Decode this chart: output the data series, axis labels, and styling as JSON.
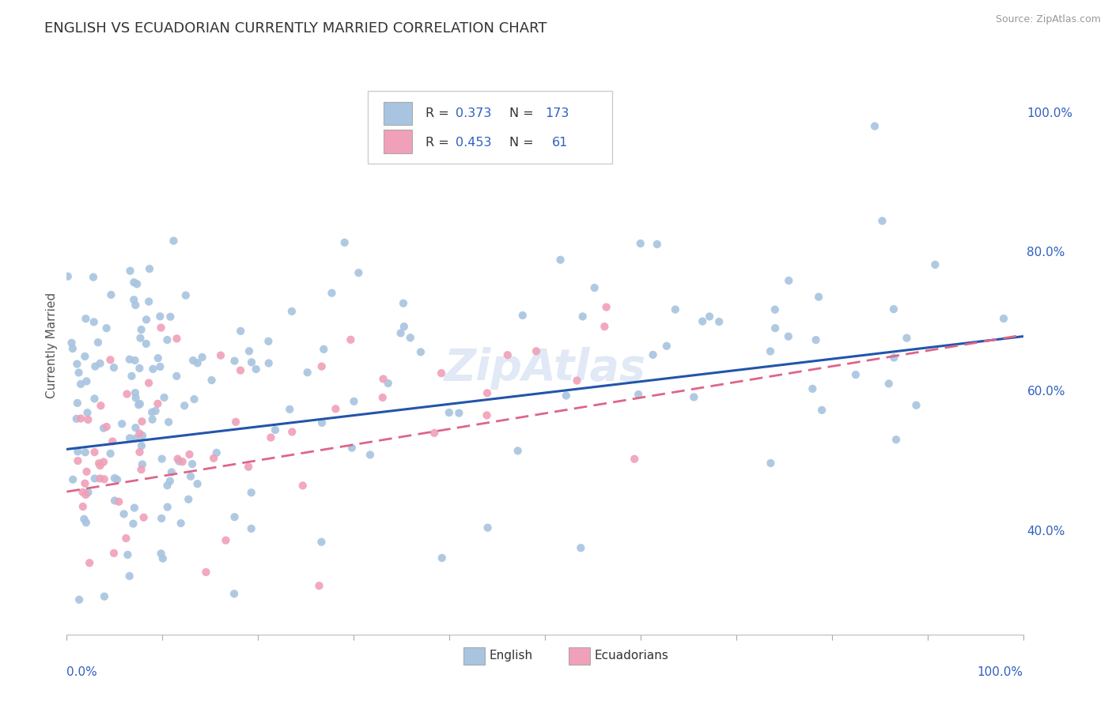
{
  "title": "ENGLISH VS ECUADORIAN CURRENTLY MARRIED CORRELATION CHART",
  "source": "Source: ZipAtlas.com",
  "ylabel": "Currently Married",
  "yaxis_values": [
    0.4,
    0.6,
    0.8,
    1.0
  ],
  "english_color": "#a8c4e0",
  "ecuadorian_color": "#f0a0b8",
  "english_line_color": "#2255aa",
  "ecuadorian_line_color": "#dd6688",
  "english_R": 0.373,
  "english_N": 173,
  "ecuadorian_R": 0.453,
  "ecuadorian_N": 61,
  "xlim": [
    0.0,
    1.0
  ],
  "ylim": [
    0.25,
    1.08
  ],
  "background_color": "#ffffff",
  "grid_color": "#cccccc",
  "title_color": "#333333",
  "label_color": "#3060c0",
  "watermark_color": "#c8d8ee",
  "english_seed": 12,
  "ecuadorian_seed": 99
}
